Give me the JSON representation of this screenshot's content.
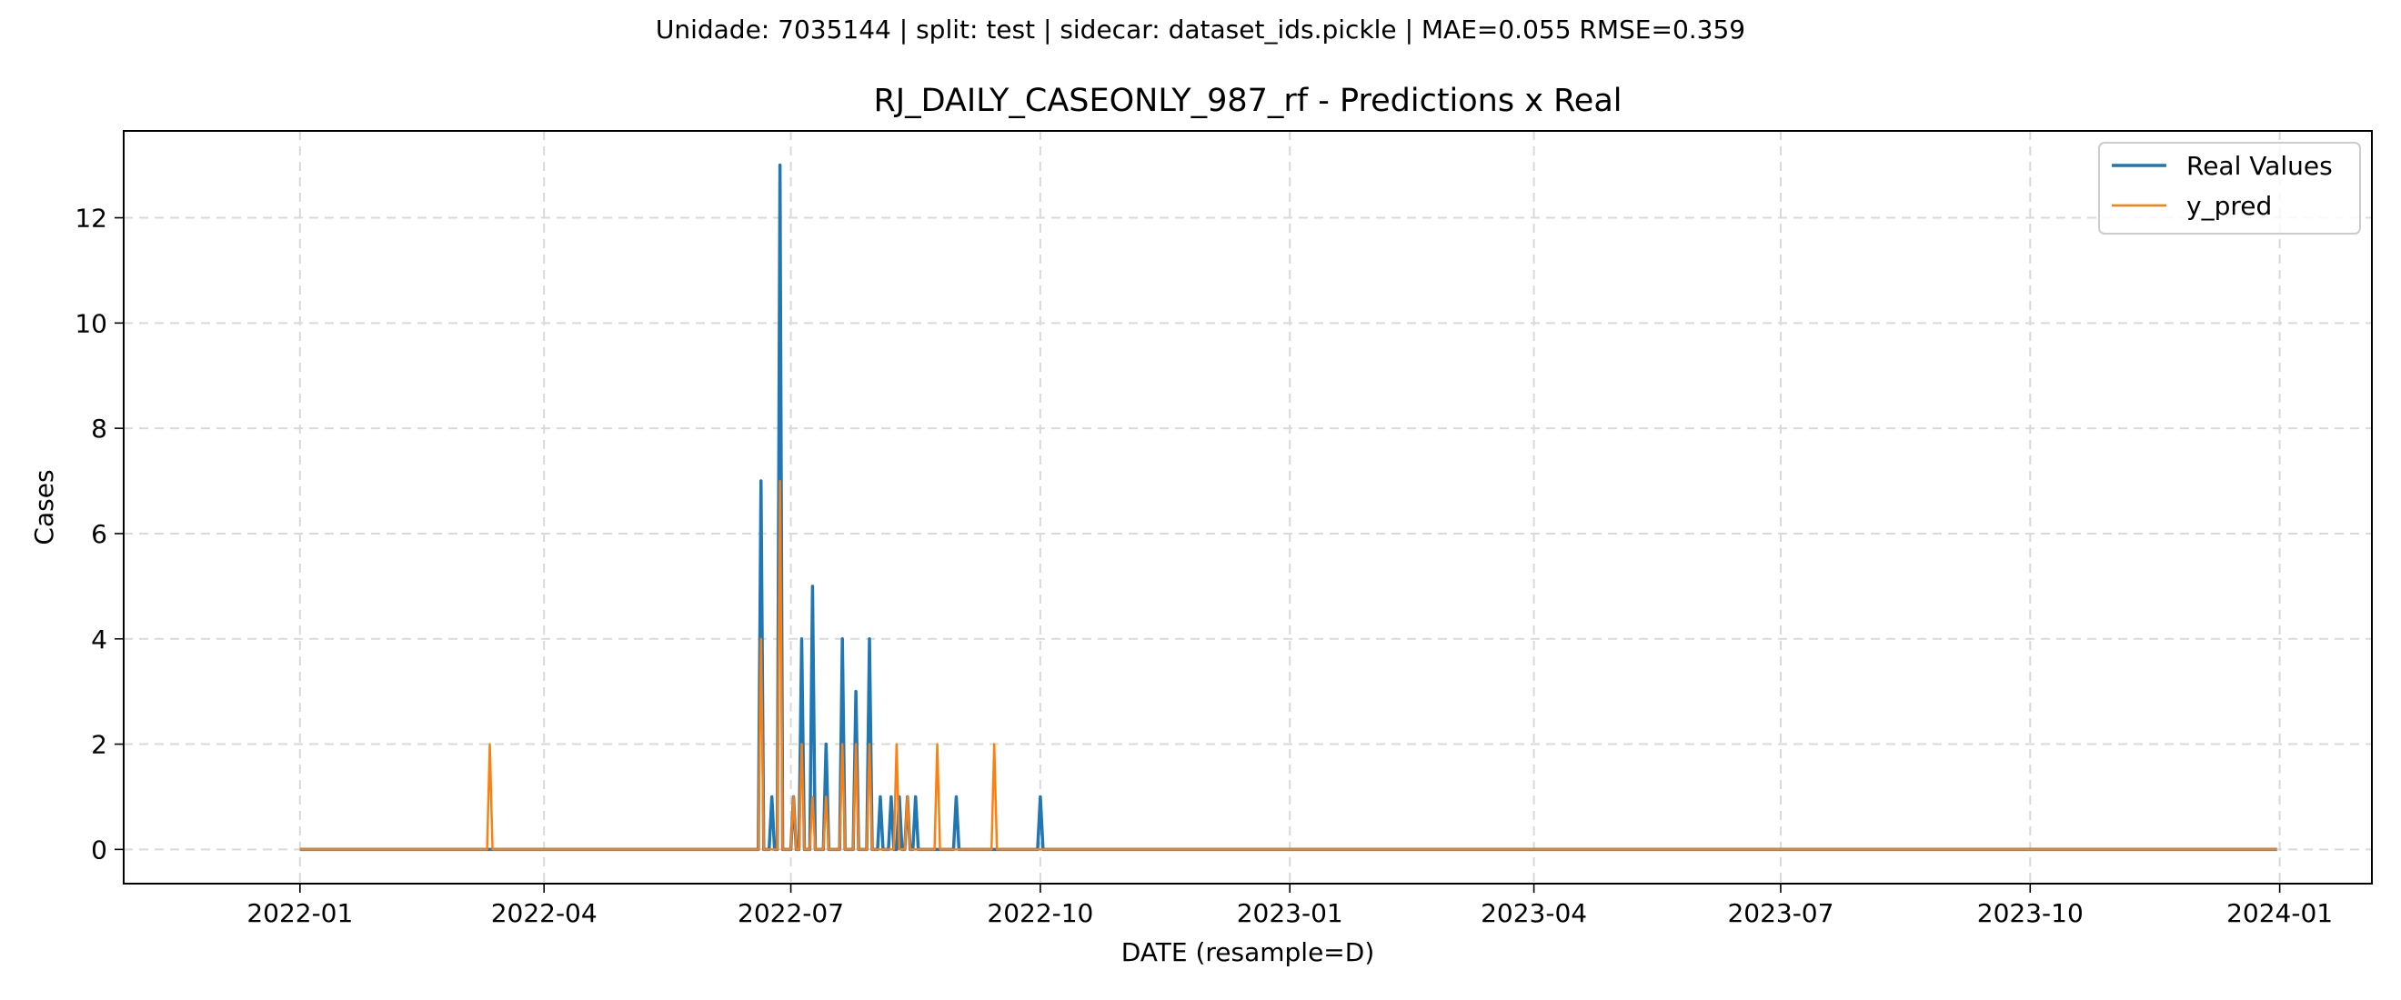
{
  "suptitle": "Unidade: 7035144 | split: test | sidecar: dataset_ids.pickle | MAE=0.055  RMSE=0.359",
  "chart_data": {
    "type": "line",
    "title": "RJ_DAILY_CASEONLY_987_rf - Predictions x Real",
    "xlabel": "DATE (resample=D)",
    "ylabel": "Cases",
    "x_range": [
      "2022-01-01",
      "2023-12-31"
    ],
    "xlim": [
      "2021-10-28",
      "2024-02-04"
    ],
    "ylim": [
      -0.65,
      13.65
    ],
    "x_ticks": [
      "2022-01-01",
      "2022-04-01",
      "2022-07-01",
      "2022-10-01",
      "2023-01-01",
      "2023-04-01",
      "2023-07-01",
      "2023-10-01",
      "2024-01-01"
    ],
    "x_tick_labels": [
      "2022-01",
      "2022-04",
      "2022-07",
      "2022-10",
      "2023-01",
      "2023-04",
      "2023-07",
      "2023-10",
      "2024-01"
    ],
    "y_ticks": [
      0,
      2,
      4,
      6,
      8,
      10,
      12
    ],
    "grid": true,
    "legend_position": "top-right",
    "baseline_value": 0,
    "series": [
      {
        "name": "Real Values",
        "color": "#1f77b4",
        "spikes": [
          {
            "date": "2022-06-20",
            "value": 7
          },
          {
            "date": "2022-06-24",
            "value": 1
          },
          {
            "date": "2022-06-27",
            "value": 13
          },
          {
            "date": "2022-07-02",
            "value": 1
          },
          {
            "date": "2022-07-05",
            "value": 4
          },
          {
            "date": "2022-07-09",
            "value": 5
          },
          {
            "date": "2022-07-14",
            "value": 2
          },
          {
            "date": "2022-07-20",
            "value": 4
          },
          {
            "date": "2022-07-25",
            "value": 3
          },
          {
            "date": "2022-07-30",
            "value": 4
          },
          {
            "date": "2022-08-03",
            "value": 1
          },
          {
            "date": "2022-08-07",
            "value": 1
          },
          {
            "date": "2022-08-10",
            "value": 1
          },
          {
            "date": "2022-08-13",
            "value": 1
          },
          {
            "date": "2022-08-16",
            "value": 1
          },
          {
            "date": "2022-08-31",
            "value": 1
          },
          {
            "date": "2022-10-01",
            "value": 1
          }
        ]
      },
      {
        "name": "y_pred",
        "color": "#ff7f0e",
        "spikes": [
          {
            "date": "2022-03-12",
            "value": 2
          },
          {
            "date": "2022-06-20",
            "value": 4
          },
          {
            "date": "2022-06-27",
            "value": 7
          },
          {
            "date": "2022-07-02",
            "value": 1
          },
          {
            "date": "2022-07-05",
            "value": 2
          },
          {
            "date": "2022-07-09",
            "value": 1
          },
          {
            "date": "2022-07-14",
            "value": 1
          },
          {
            "date": "2022-07-20",
            "value": 2
          },
          {
            "date": "2022-07-25",
            "value": 2
          },
          {
            "date": "2022-07-30",
            "value": 2
          },
          {
            "date": "2022-08-09",
            "value": 2
          },
          {
            "date": "2022-08-13",
            "value": 1
          },
          {
            "date": "2022-08-24",
            "value": 2
          },
          {
            "date": "2022-09-14",
            "value": 2
          }
        ]
      }
    ]
  }
}
